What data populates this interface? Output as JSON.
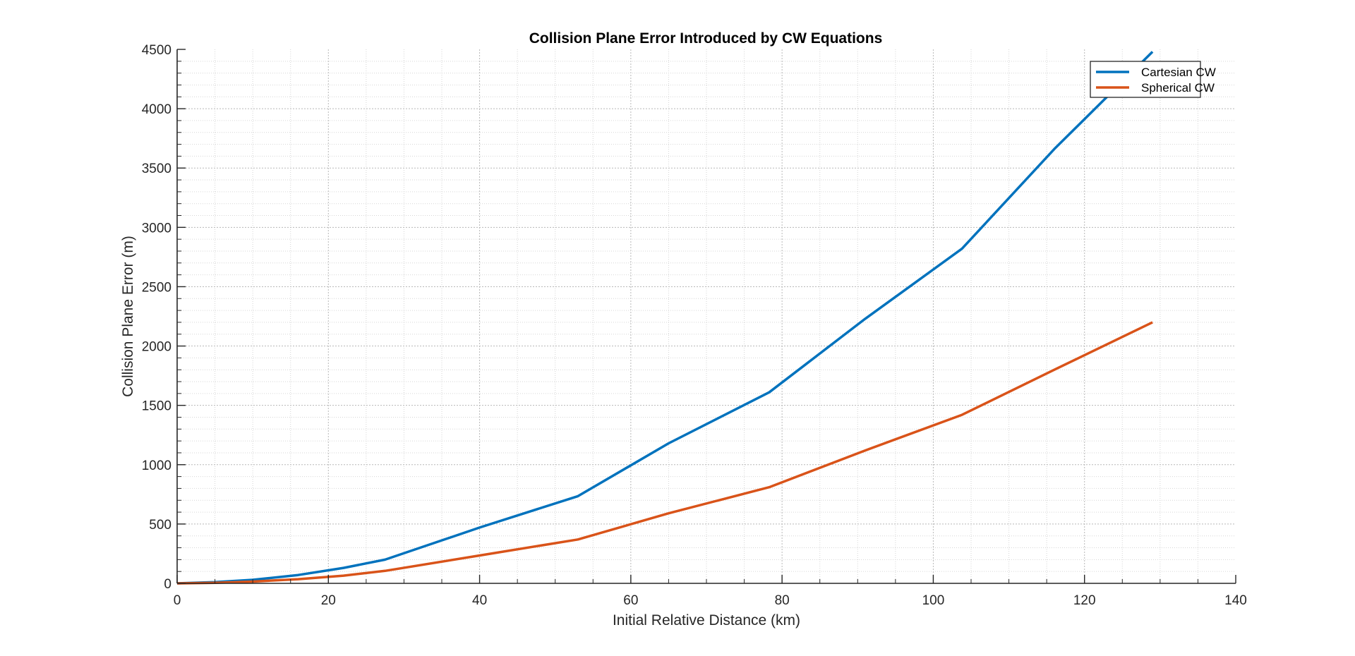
{
  "chart_data": {
    "type": "line",
    "title": "Collision Plane Error Introduced by CW Equations",
    "xlabel": "Initial Relative Distance (km)",
    "ylabel": "Collision Plane Error (m)",
    "xlim": [
      0,
      140
    ],
    "ylim": [
      0,
      4500
    ],
    "xticks": [
      0,
      20,
      40,
      60,
      80,
      100,
      120,
      140
    ],
    "yticks": [
      0,
      500,
      1000,
      1500,
      2000,
      2500,
      3000,
      3500,
      4000,
      4500
    ],
    "grid": "on (major and minor, dotted)",
    "legend_location": "top-right",
    "series": [
      {
        "name": "Cartesian CW",
        "color": "#0072BD",
        "x": [
          0,
          5,
          10,
          16,
          22,
          27.5,
          40,
          53,
          65,
          78.3,
          91,
          103.8,
          116,
          129
        ],
        "y": [
          0,
          10,
          30,
          70,
          130,
          200,
          470,
          735,
          1180,
          1610,
          2230,
          2820,
          3660,
          4480
        ]
      },
      {
        "name": "Spherical CW",
        "color": "#D95319",
        "x": [
          0,
          5,
          10,
          16,
          22,
          27.5,
          40,
          53,
          65,
          78.3,
          91,
          103.8,
          116,
          129
        ],
        "y": [
          0,
          5,
          15,
          35,
          65,
          105,
          235,
          370,
          590,
          810,
          1120,
          1420,
          1800,
          2200
        ]
      }
    ]
  }
}
